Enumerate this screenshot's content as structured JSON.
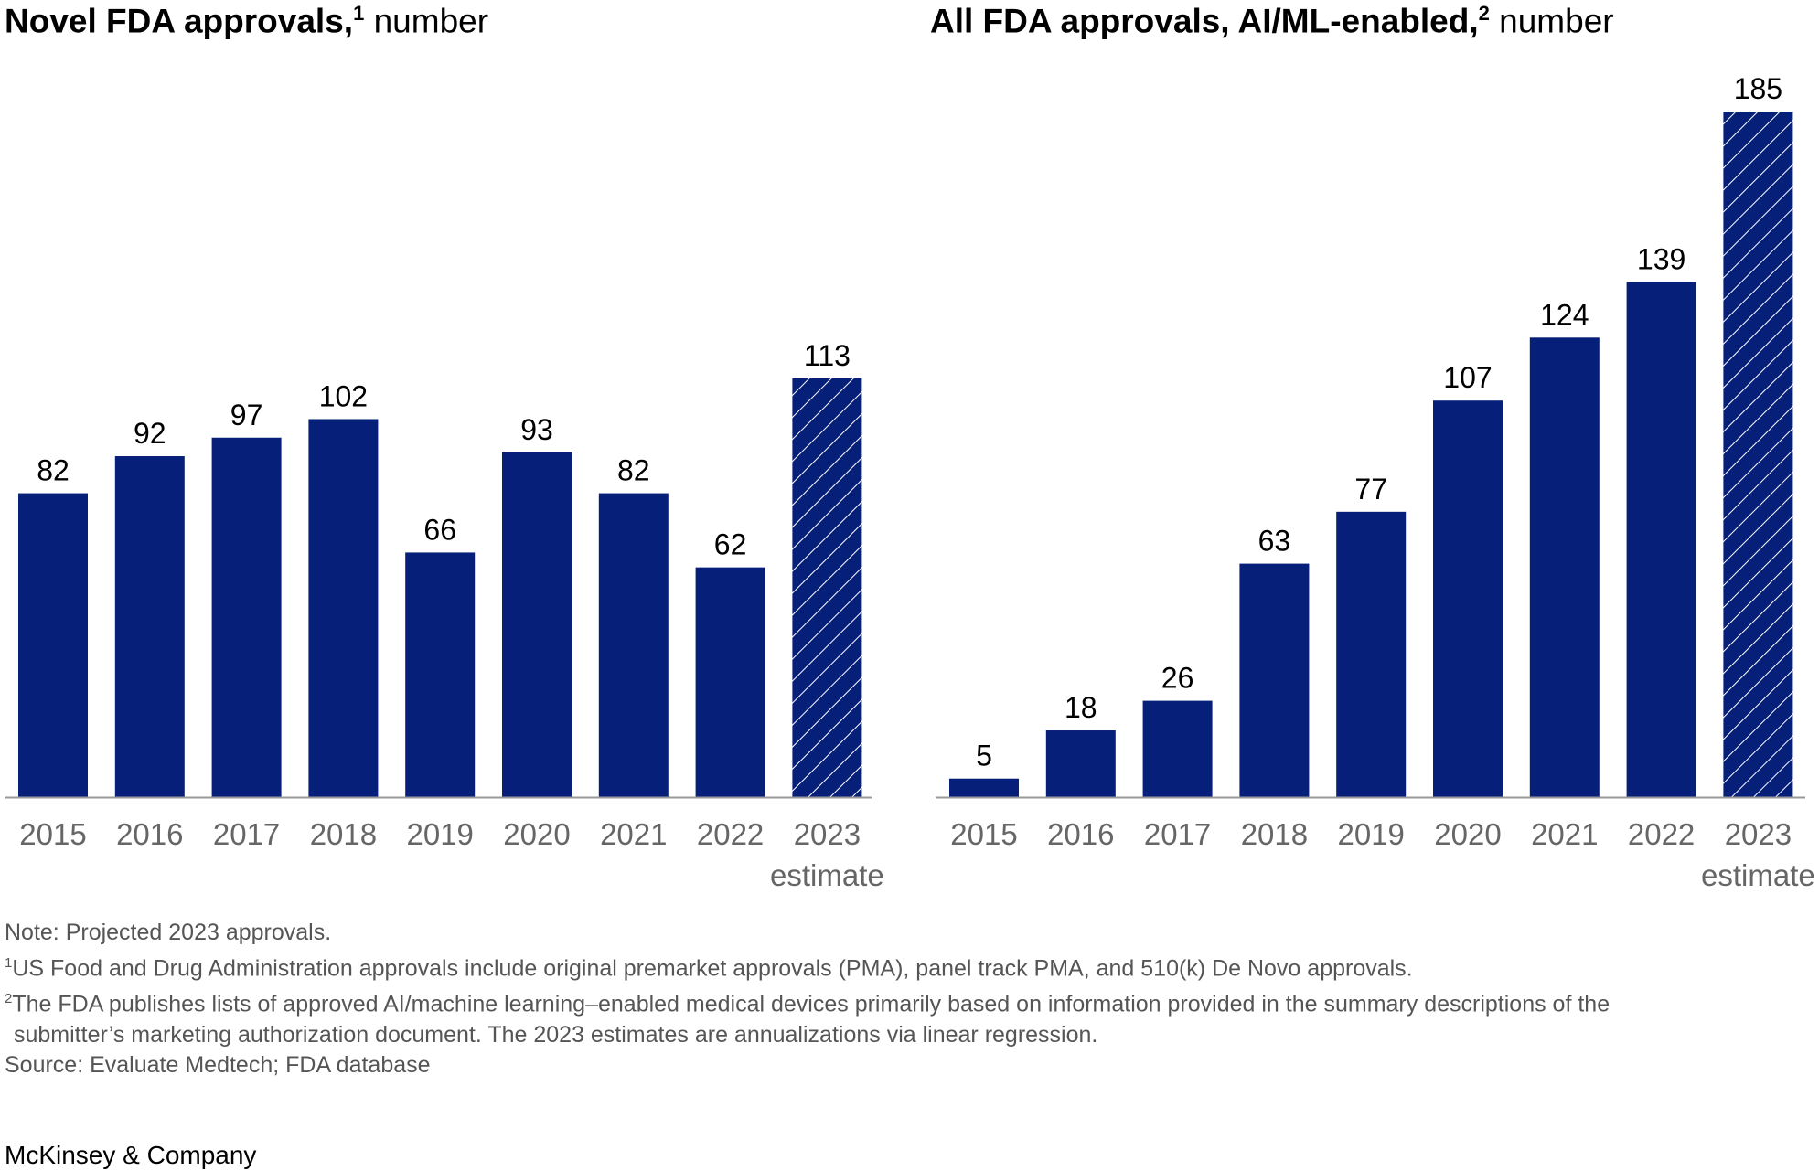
{
  "chart_data": [
    {
      "type": "bar",
      "title": "Novel FDA approvals,",
      "title_sup": "1",
      "unit": "number",
      "categories": [
        "2015",
        "2016",
        "2017",
        "2018",
        "2019",
        "2020",
        "2021",
        "2022",
        "2023"
      ],
      "sublabels": [
        "",
        "",
        "",
        "",
        "",
        "",
        "",
        "",
        "estimate"
      ],
      "values": [
        82,
        92,
        97,
        102,
        66,
        93,
        82,
        62,
        113
      ],
      "estimate": [
        false,
        false,
        false,
        false,
        false,
        false,
        false,
        false,
        true
      ],
      "ylim": [
        0,
        185
      ]
    },
    {
      "type": "bar",
      "title": "All FDA approvals, AI/ML-enabled,",
      "title_sup": "2",
      "unit": "number",
      "categories": [
        "2015",
        "2016",
        "2017",
        "2018",
        "2019",
        "2020",
        "2021",
        "2022",
        "2023"
      ],
      "sublabels": [
        "",
        "",
        "",
        "",
        "",
        "",
        "",
        "",
        "estimate"
      ],
      "values": [
        5,
        18,
        26,
        63,
        77,
        107,
        124,
        139,
        185
      ],
      "estimate": [
        false,
        false,
        false,
        false,
        false,
        false,
        false,
        false,
        true
      ],
      "ylim": [
        0,
        185
      ]
    }
  ],
  "colors": {
    "bar": "#061f79",
    "axis": "#999999",
    "tick_label": "#666666"
  },
  "notes": {
    "note": "Note: Projected 2023 approvals.",
    "fn1_sup": "1",
    "fn1": "US Food and Drug Administration approvals include original premarket approvals (PMA), panel track PMA, and 510(k) De Novo approvals.",
    "fn2_sup": "2",
    "fn2a": "The FDA publishes lists of approved AI/machine learning–enabled medical devices primarily based on information provided in the summary descriptions of the",
    "fn2b": "submitter’s marketing authorization document. The 2023 estimates are annualizations via linear regression.",
    "source": "Source: Evaluate Medtech; FDA database"
  },
  "logo": "McKinsey & Company"
}
